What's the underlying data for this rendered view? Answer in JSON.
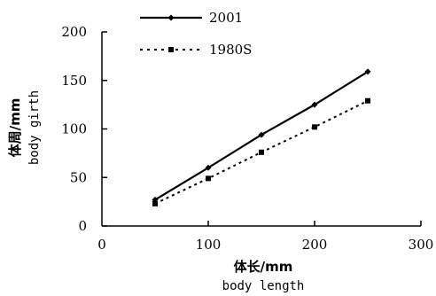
{
  "chart_data": {
    "type": "line",
    "title": "",
    "xlabel_cn": "体长/mm",
    "xlabel_en": "body length",
    "ylabel_cn": "体周/mm",
    "ylabel_en": "body girth",
    "xlim": [
      0,
      300
    ],
    "ylim": [
      0,
      200
    ],
    "x_ticks": [
      0,
      100,
      200,
      300
    ],
    "y_ticks": [
      0,
      50,
      100,
      150,
      200
    ],
    "grid": false,
    "legend_position": "top",
    "series": [
      {
        "name": "2001",
        "line_style": "solid",
        "marker": "diamond",
        "color": "#000000",
        "x": [
          50,
          100,
          150,
          200,
          250
        ],
        "y": [
          27,
          60,
          94,
          125,
          159
        ]
      },
      {
        "name": "1980S",
        "line_style": "dotted",
        "marker": "square",
        "color": "#000000",
        "x": [
          50,
          100,
          150,
          200,
          250
        ],
        "y": [
          23,
          49,
          76,
          102,
          129
        ]
      }
    ]
  }
}
